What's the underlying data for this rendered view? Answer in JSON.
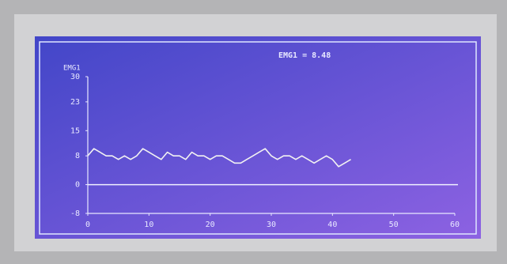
{
  "chart_data": {
    "type": "line",
    "title": "EMG1 = 8.48",
    "y_label": "EMG1",
    "x": [
      0,
      1,
      2,
      3,
      4,
      5,
      6,
      7,
      8,
      9,
      10,
      11,
      12,
      13,
      14,
      15,
      16,
      17,
      18,
      19,
      20,
      21,
      22,
      23,
      24,
      25,
      26,
      27,
      28,
      29,
      30,
      31,
      32,
      33,
      34,
      35,
      36,
      37,
      38,
      39,
      40,
      41,
      42,
      43
    ],
    "series": [
      {
        "name": "EMG1",
        "color": "#f2f2f2",
        "values": [
          8,
          10,
          9,
          8,
          8,
          7,
          8,
          7,
          8,
          10,
          9,
          8,
          7,
          9,
          8,
          8,
          7,
          9,
          8,
          8,
          7,
          8,
          8,
          7,
          6,
          6,
          7,
          8,
          9,
          10,
          8,
          7,
          8,
          8,
          7,
          8,
          7,
          6,
          7,
          8,
          7,
          5,
          6,
          7
        ]
      }
    ],
    "xlim": [
      0,
      60
    ],
    "xticks": [
      0,
      10,
      20,
      30,
      40,
      50,
      60
    ],
    "ylim": [
      -8,
      30
    ],
    "yticks": [
      -8,
      0,
      8,
      15,
      23,
      30
    ]
  }
}
